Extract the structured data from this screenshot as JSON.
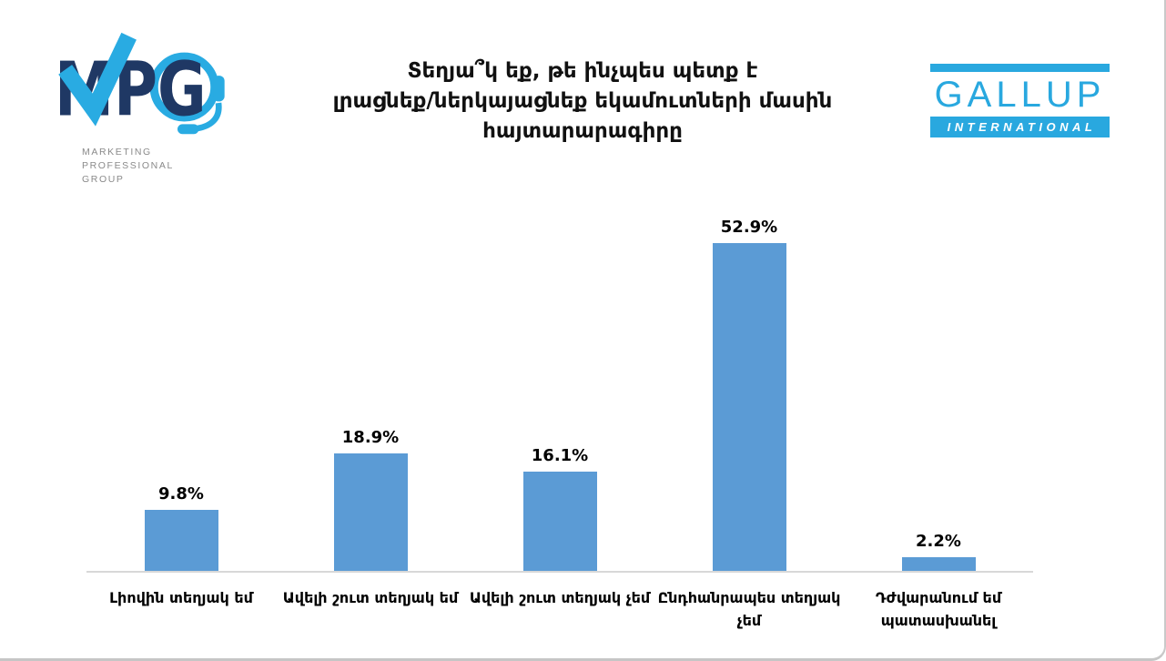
{
  "header": {
    "title_lines": [
      "Տեղյա՞կ եք, թե ինչպես պետք է",
      "լրացնեք/ներկայացնեք եկամուտների մասին",
      "հայտարարագիրը"
    ],
    "mpg": {
      "acronym": "MPG",
      "subtitle_lines": [
        "MARKETING",
        "PROFESSIONAL",
        "GROUP"
      ]
    },
    "gallup": {
      "name": "GALLUP",
      "subtitle": "INTERNATIONAL"
    }
  },
  "theme": {
    "bar": "#5B9BD5",
    "cyan": "#29ABE2",
    "gallup_cyan": "#29A8DF",
    "navy": "#1F3864",
    "gray_text": "#8A8A8A",
    "axis_line": "#D8D8D8"
  },
  "chart_data": {
    "type": "bar",
    "title": "Տեղյա՞կ եք, թե ինչպես պետք է լրացնեք/ներկայացնեք եկամուտների մասին հայտարարագիրը",
    "categories": [
      "Լիովին տեղյակ եմ",
      "Ավելի շուտ տեղյակ եմ",
      "Ավելի շուտ տեղյակ չեմ",
      "Ընդհանրապես տեղյակ չեմ",
      "Դժվարանում եմ պատասխանել"
    ],
    "values": [
      9.8,
      18.9,
      16.1,
      52.9,
      2.2
    ],
    "value_labels": [
      "9.8%",
      "18.9%",
      "16.1%",
      "52.9%",
      "2.2%"
    ],
    "xlabel": "",
    "ylabel": "",
    "ylim": [
      0,
      60
    ],
    "grid": false,
    "legend": false,
    "bar_color": "#5B9BD5"
  }
}
